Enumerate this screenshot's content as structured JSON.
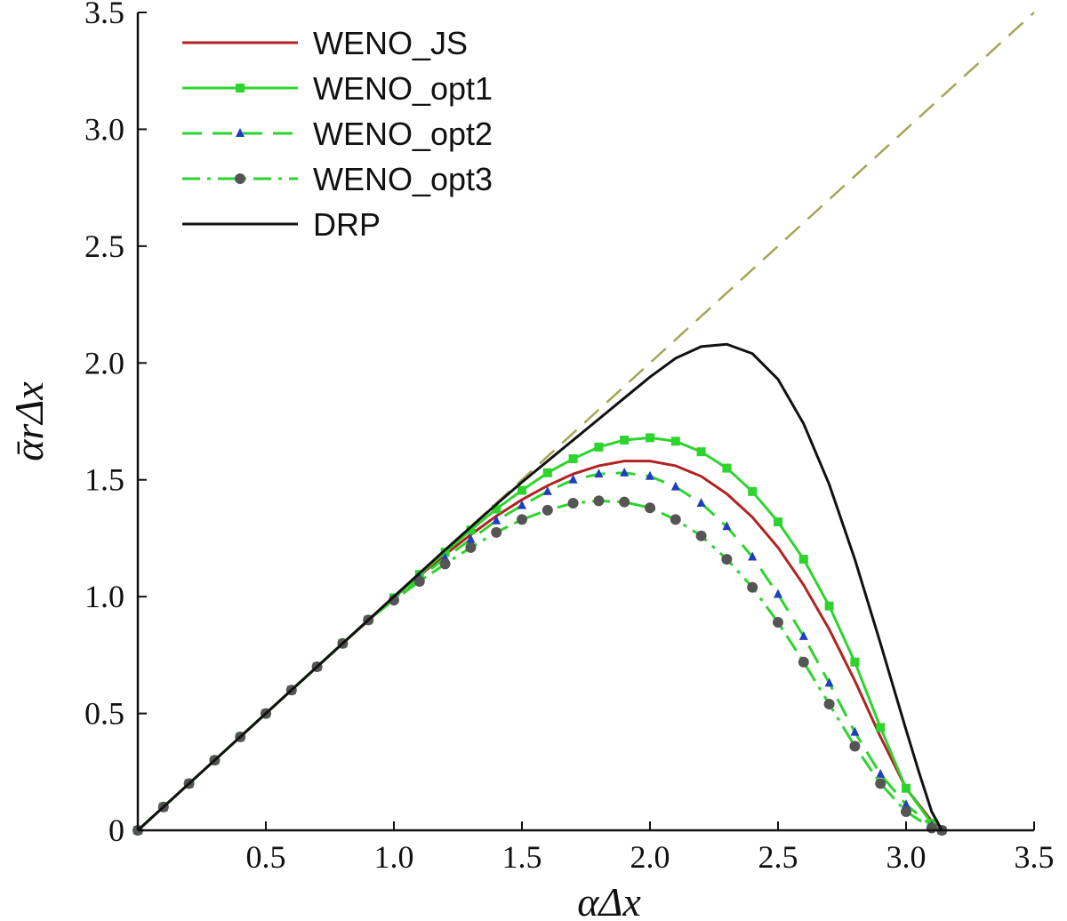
{
  "chart_data": {
    "type": "line",
    "title": "",
    "xlabel": "αΔx",
    "ylabel": "ᾱrΔx",
    "xlim": [
      0,
      3.5
    ],
    "ylim": [
      0,
      3.5
    ],
    "x_ticks": [
      0.5,
      1.0,
      1.5,
      2.0,
      2.5,
      3.0,
      3.5
    ],
    "x_tick_labels": [
      "0.5",
      "1.0",
      "1.5",
      "2.0",
      "2.5",
      "3.0",
      "3.5"
    ],
    "y_ticks": [
      0,
      0.5,
      1.0,
      1.5,
      2.0,
      2.5,
      3.0,
      3.5
    ],
    "y_tick_labels": [
      "0",
      "0.5",
      "1.0",
      "1.5",
      "2.0",
      "2.5",
      "3.0",
      "3.5"
    ],
    "grid": false,
    "legend_position": "top-left",
    "reference_line": {
      "x": [
        0,
        3.5
      ],
      "y": [
        0,
        3.5
      ],
      "color": "#a5a556",
      "dash": "dashed"
    },
    "series": [
      {
        "name": "WENO_JS",
        "color": "#b22222",
        "dash": "solid",
        "marker": "none",
        "x": [
          0,
          0.2,
          0.4,
          0.6,
          0.8,
          1.0,
          1.1,
          1.2,
          1.3,
          1.4,
          1.5,
          1.6,
          1.7,
          1.8,
          1.9,
          2.0,
          2.1,
          2.2,
          2.3,
          2.4,
          2.5,
          2.6,
          2.7,
          2.8,
          2.9,
          3.0,
          3.1,
          3.14
        ],
        "y": [
          0,
          0.2,
          0.4,
          0.6,
          0.8,
          0.995,
          1.09,
          1.18,
          1.265,
          1.345,
          1.415,
          1.475,
          1.525,
          1.56,
          1.58,
          1.58,
          1.56,
          1.515,
          1.44,
          1.34,
          1.21,
          1.05,
          0.86,
          0.64,
          0.4,
          0.18,
          0.04,
          0
        ]
      },
      {
        "name": "WENO_opt1",
        "color": "#2ed42e",
        "dash": "solid",
        "marker": "square",
        "x": [
          0,
          0.1,
          0.2,
          0.3,
          0.4,
          0.5,
          0.6,
          0.7,
          0.8,
          0.9,
          1.0,
          1.1,
          1.2,
          1.3,
          1.4,
          1.5,
          1.6,
          1.7,
          1.8,
          1.9,
          2.0,
          2.1,
          2.2,
          2.3,
          2.4,
          2.5,
          2.6,
          2.7,
          2.8,
          2.9,
          3.0,
          3.1,
          3.14
        ],
        "y": [
          0,
          0.1,
          0.2,
          0.3,
          0.4,
          0.5,
          0.6,
          0.7,
          0.8,
          0.9,
          0.995,
          1.095,
          1.19,
          1.285,
          1.375,
          1.455,
          1.53,
          1.59,
          1.64,
          1.67,
          1.68,
          1.665,
          1.62,
          1.55,
          1.45,
          1.32,
          1.16,
          0.96,
          0.72,
          0.44,
          0.18,
          0.03,
          0
        ]
      },
      {
        "name": "WENO_opt2",
        "color": "#2ed42e",
        "dash": "dashed",
        "marker": "triangle",
        "marker_color": "#1f3fbf",
        "x": [
          0,
          0.1,
          0.2,
          0.3,
          0.4,
          0.5,
          0.6,
          0.7,
          0.8,
          0.9,
          1.0,
          1.1,
          1.2,
          1.3,
          1.4,
          1.5,
          1.6,
          1.7,
          1.8,
          1.9,
          2.0,
          2.1,
          2.2,
          2.3,
          2.4,
          2.5,
          2.6,
          2.7,
          2.8,
          2.9,
          3.0,
          3.1,
          3.14
        ],
        "y": [
          0,
          0.1,
          0.2,
          0.3,
          0.4,
          0.5,
          0.6,
          0.7,
          0.8,
          0.9,
          0.99,
          1.08,
          1.165,
          1.245,
          1.325,
          1.39,
          1.45,
          1.5,
          1.525,
          1.53,
          1.515,
          1.47,
          1.4,
          1.3,
          1.17,
          1.01,
          0.83,
          0.63,
          0.42,
          0.24,
          0.11,
          0.02,
          0
        ]
      },
      {
        "name": "WENO_opt3",
        "color": "#2ed42e",
        "dash": "dashdot",
        "marker": "circle",
        "marker_color": "#555555",
        "x": [
          0,
          0.1,
          0.2,
          0.3,
          0.4,
          0.5,
          0.6,
          0.7,
          0.8,
          0.9,
          1.0,
          1.1,
          1.2,
          1.3,
          1.4,
          1.5,
          1.6,
          1.7,
          1.8,
          1.9,
          2.0,
          2.1,
          2.2,
          2.3,
          2.4,
          2.5,
          2.6,
          2.7,
          2.8,
          2.9,
          3.0,
          3.1,
          3.14
        ],
        "y": [
          0,
          0.1,
          0.2,
          0.3,
          0.4,
          0.5,
          0.6,
          0.7,
          0.8,
          0.9,
          0.985,
          1.065,
          1.14,
          1.21,
          1.275,
          1.33,
          1.37,
          1.4,
          1.41,
          1.405,
          1.38,
          1.33,
          1.26,
          1.16,
          1.04,
          0.89,
          0.72,
          0.54,
          0.36,
          0.2,
          0.08,
          0.01,
          0
        ]
      },
      {
        "name": "DRP",
        "color": "#111111",
        "dash": "solid",
        "marker": "none",
        "x": [
          0,
          0.2,
          0.4,
          0.6,
          0.8,
          1.0,
          1.2,
          1.4,
          1.5,
          1.6,
          1.7,
          1.8,
          1.9,
          2.0,
          2.1,
          2.2,
          2.3,
          2.4,
          2.5,
          2.6,
          2.7,
          2.8,
          2.9,
          3.0,
          3.05,
          3.1,
          3.14
        ],
        "y": [
          0,
          0.2,
          0.4,
          0.6,
          0.8,
          1.0,
          1.2,
          1.395,
          1.49,
          1.58,
          1.67,
          1.76,
          1.85,
          1.94,
          2.02,
          2.07,
          2.08,
          2.04,
          1.93,
          1.74,
          1.48,
          1.16,
          0.8,
          0.43,
          0.25,
          0.08,
          0
        ]
      }
    ]
  }
}
